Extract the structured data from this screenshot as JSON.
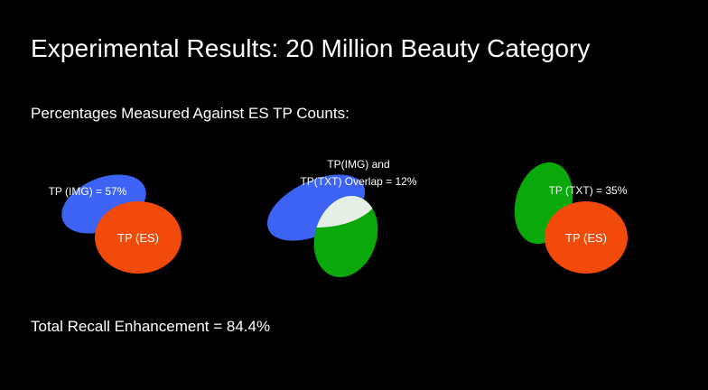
{
  "slide": {
    "title": "Experimental Results: 20 Million Beauty Category",
    "subtitle": "Percentages Measured Against ES TP Counts:",
    "footer": "Total Recall Enhancement = 84.4%"
  },
  "colors": {
    "background": "#000000",
    "img": "#3d63f5",
    "txt": "#0aa80a",
    "es": "#f24a0a",
    "overlap": "#e6efe6"
  },
  "venn_left": {
    "img_label": "TP (IMG) = 57%",
    "es_label": "TP (ES)"
  },
  "venn_middle": {
    "overlap_label_line1": "TP(IMG) and",
    "overlap_label_line2": "TP(TXT) Overlap = 12%"
  },
  "venn_right": {
    "txt_label": "TP (TXT) = 35%",
    "es_label": "TP (ES)"
  }
}
